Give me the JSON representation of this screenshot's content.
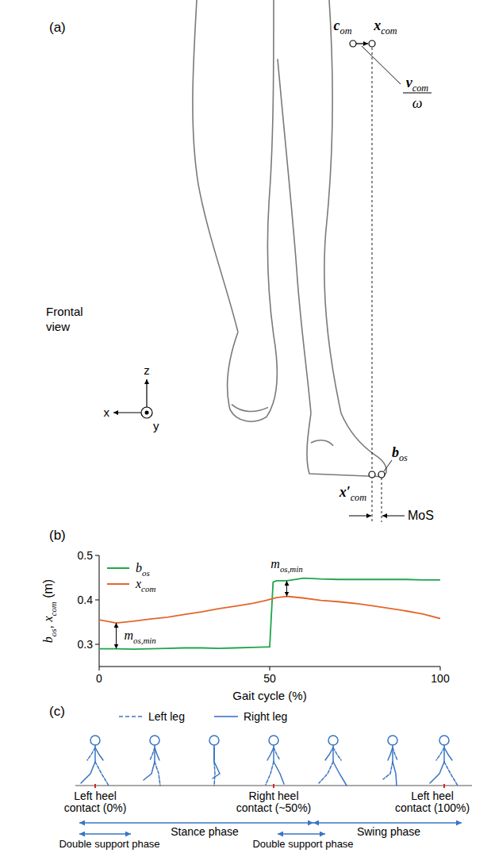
{
  "panel_a": {
    "letter": "(a)",
    "view_label": "Frontal view",
    "points": {
      "c_om": {
        "label": [
          [
            "c",
            "b"
          ],
          [
            "om",
            "s"
          ]
        ]
      },
      "x_com": {
        "label": [
          [
            "x",
            "b"
          ],
          [
            "com",
            "s"
          ]
        ]
      },
      "b_os": {
        "label": [
          [
            "b",
            "b"
          ],
          [
            "os",
            "s"
          ]
        ]
      },
      "x_com_projected": {
        "label": [
          [
            "x",
            "b"
          ],
          [
            "′",
            "b"
          ],
          [
            "com",
            "s"
          ]
        ]
      }
    },
    "velocity": {
      "numerator": [
        [
          "v",
          "b"
        ],
        [
          "com",
          "s"
        ]
      ],
      "denominator": [
        [
          "ω",
          "i"
        ]
      ]
    },
    "axes": {
      "x": "x",
      "y": "y",
      "z": "z"
    },
    "margin_label": "MoS"
  },
  "chart_data": {
    "type": "line",
    "panel": "(b)",
    "xlabel": "Gait cycle (%)",
    "ylabel": [
      [
        "b",
        "i"
      ],
      [
        "os",
        "s"
      ],
      [
        ", ",
        "n"
      ],
      [
        "x",
        "i"
      ],
      [
        "com",
        "s"
      ],
      [
        " (m)",
        "n"
      ]
    ],
    "x": [
      0,
      5,
      10,
      15,
      20,
      25,
      30,
      35,
      40,
      45,
      49,
      50,
      51,
      52,
      55,
      60,
      65,
      70,
      75,
      80,
      85,
      90,
      95,
      100
    ],
    "series": [
      {
        "name": [
          [
            "b",
            "i"
          ],
          [
            "os",
            "s"
          ]
        ],
        "color": "#1fa64a",
        "values": [
          0.29,
          0.29,
          0.289,
          0.29,
          0.291,
          0.292,
          0.292,
          0.291,
          0.292,
          0.293,
          0.294,
          0.294,
          0.44,
          0.443,
          0.443,
          0.449,
          0.447,
          0.446,
          0.446,
          0.446,
          0.446,
          0.446,
          0.445,
          0.445
        ]
      },
      {
        "name": [
          [
            "x",
            "i"
          ],
          [
            "com",
            "s"
          ]
        ],
        "color": "#e4662c",
        "values": [
          0.355,
          0.348,
          0.352,
          0.357,
          0.361,
          0.367,
          0.373,
          0.38,
          0.386,
          0.392,
          0.399,
          0.401,
          0.403,
          0.405,
          0.408,
          0.404,
          0.399,
          0.396,
          0.392,
          0.387,
          0.381,
          0.375,
          0.368,
          0.358
        ]
      }
    ],
    "xlim": [
      0,
      100
    ],
    "xticks": [
      0,
      50,
      100
    ],
    "ylim": [
      0.25,
      0.5
    ],
    "yticks": [
      0.3,
      0.4,
      0.5
    ],
    "grid": false,
    "legend": "upper left",
    "annotations": [
      {
        "text": [
          [
            "m",
            "i"
          ],
          [
            "os,min",
            "s"
          ]
        ],
        "x": 5,
        "y1": 0.29,
        "y2": 0.348
      },
      {
        "text": [
          [
            "m",
            "i"
          ],
          [
            "os,min",
            "s"
          ]
        ],
        "x": 55,
        "y1": 0.408,
        "y2": 0.443
      }
    ]
  },
  "panel_c": {
    "letter": "(c)",
    "color": "#3a75c4",
    "legend": [
      {
        "name": "Left leg",
        "line_style": "dashed"
      },
      {
        "name": "Right leg",
        "line_style": "solid"
      }
    ],
    "events": [
      [
        "Left heel",
        "contact (0%)"
      ],
      [
        "Right heel",
        "contact (~50%)"
      ],
      [
        "Left heel",
        "contact (100%)"
      ]
    ],
    "phases": [
      "Stance phase",
      "Swing phase"
    ],
    "double_support": [
      "Double support phase",
      "Double support phase"
    ]
  }
}
